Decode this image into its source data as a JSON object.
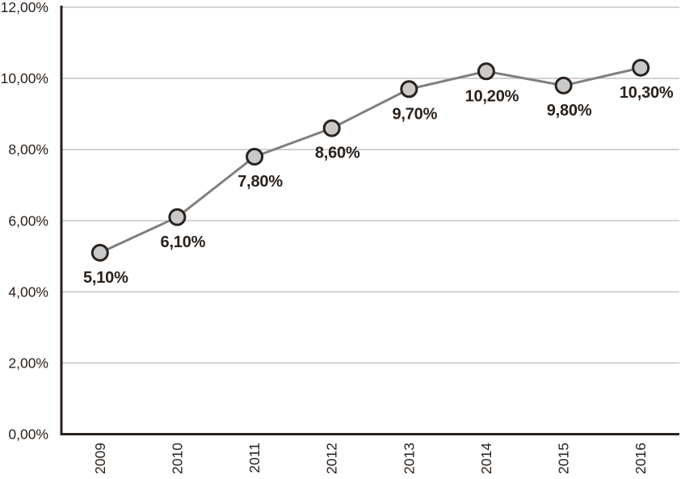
{
  "chart_data": {
    "type": "line",
    "title": "",
    "xlabel": "",
    "ylabel": "",
    "categories": [
      "2009",
      "2010",
      "2011",
      "2012",
      "2013",
      "2014",
      "2015",
      "2016"
    ],
    "series": [
      {
        "name": "percentage",
        "values": [
          5.1,
          6.1,
          7.8,
          8.6,
          9.7,
          10.2,
          9.8,
          10.3
        ]
      }
    ],
    "point_labels": [
      "5,10%",
      "6,10%",
      "7,80%",
      "8,60%",
      "9,70%",
      "10,20%",
      "9,80%",
      "10,30%"
    ],
    "y_axis": {
      "min": 0,
      "max": 12,
      "step": 2,
      "tick_labels": [
        "0,00%",
        "2,00%",
        "4,00%",
        "6,00%",
        "8,00%",
        "10,00%",
        "12,00%"
      ]
    },
    "grid": true,
    "legend_position": "none",
    "colors": {
      "line": "#7f7f7f",
      "marker_fill": "#c9c9c9",
      "marker_stroke": "#2a211b",
      "axis": "#2a211b",
      "gridline": "#c7c7c7",
      "label_text": "#2a211b",
      "background": "#ffffff"
    }
  }
}
